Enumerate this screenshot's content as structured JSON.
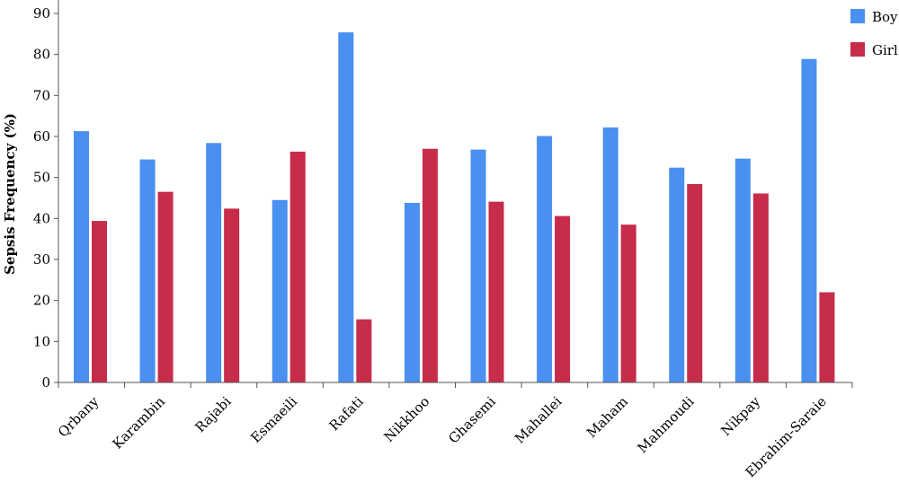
{
  "chart_data": {
    "type": "bar",
    "title": "",
    "xlabel": "",
    "ylabel": "Sepsis Frequency (%)",
    "ylim": [
      0,
      90
    ],
    "yticks": [
      0,
      10,
      20,
      30,
      40,
      50,
      60,
      70,
      80,
      90
    ],
    "grid": false,
    "legend_position": "top-right",
    "categories": [
      "Qrbany",
      "Karambin",
      "Rajabi",
      "Esmaeili",
      "Rafati",
      "Nikkhoo",
      "Ghasemi",
      "Mahallei",
      "Maham",
      "Mahmoudi",
      "Nikpay",
      "Ebrahim-Saraie"
    ],
    "series": [
      {
        "name": "Boy",
        "color": "#4A90F0",
        "values": [
          61.3,
          54.4,
          58.4,
          44.5,
          85.4,
          43.8,
          56.8,
          60.1,
          62.2,
          52.4,
          54.6,
          78.9
        ]
      },
      {
        "name": "Girl",
        "color": "#C72C4B",
        "values": [
          39.4,
          46.5,
          42.4,
          56.3,
          15.4,
          57.0,
          44.1,
          40.6,
          38.5,
          48.4,
          46.1,
          22.0
        ]
      }
    ]
  }
}
